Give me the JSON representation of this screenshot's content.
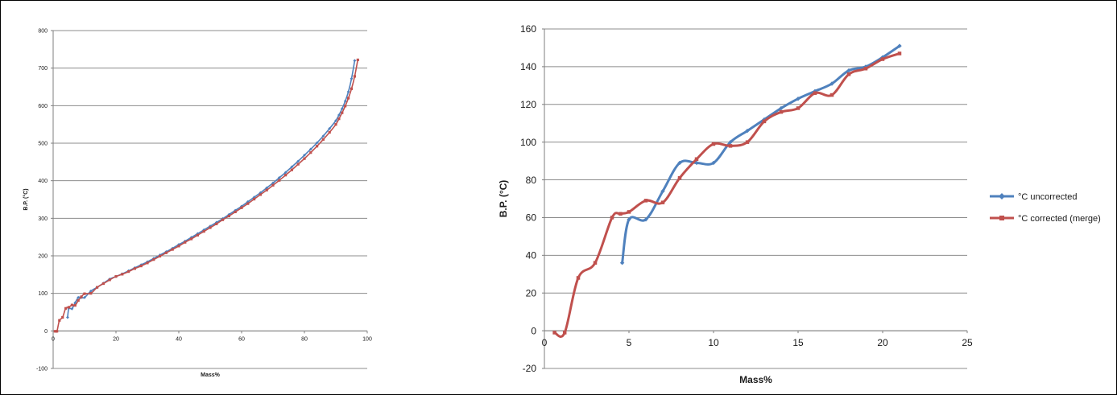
{
  "chart_data": [
    {
      "type": "line",
      "xlabel": "Mass%",
      "ylabel": "B.P. (°C)",
      "xlim": [
        0,
        100
      ],
      "ylim": [
        -100,
        800
      ],
      "xticks": [
        0,
        20,
        40,
        60,
        80,
        100
      ],
      "yticks": [
        -100,
        0,
        100,
        200,
        300,
        400,
        500,
        600,
        700,
        800
      ],
      "grid": true,
      "legend": "none",
      "series": [
        {
          "color": "#4f81bd",
          "marker": "diamond",
          "x": [
            4.6,
            5,
            6,
            7,
            8,
            9,
            10,
            12,
            14,
            16,
            18,
            20,
            22,
            24,
            26,
            28,
            30,
            32,
            34,
            36,
            38,
            40,
            42,
            44,
            46,
            48,
            50,
            52,
            54,
            56,
            58,
            60,
            62,
            64,
            66,
            68,
            70,
            72,
            74,
            76,
            78,
            80,
            82,
            84,
            86,
            88,
            90,
            91,
            92,
            93,
            94,
            95,
            96
          ],
          "y": [
            36,
            60,
            59,
            75,
            89,
            89,
            89,
            106,
            116,
            127,
            138,
            145,
            152,
            160,
            168,
            176,
            184,
            193,
            202,
            211,
            220,
            230,
            239,
            249,
            259,
            269,
            279,
            289,
            299,
            310,
            321,
            332,
            344,
            356,
            368,
            381,
            394,
            408,
            422,
            437,
            452,
            468,
            484,
            501,
            519,
            539,
            560,
            575,
            592,
            612,
            637,
            672,
            720
          ]
        },
        {
          "color": "#c0504d",
          "marker": "square",
          "x": [
            0.6,
            1.2,
            2,
            3,
            4,
            5,
            6,
            7,
            8,
            9,
            10,
            12,
            14,
            16,
            18,
            20,
            22,
            24,
            26,
            28,
            30,
            32,
            34,
            36,
            38,
            40,
            42,
            44,
            46,
            48,
            50,
            52,
            54,
            56,
            58,
            60,
            62,
            64,
            66,
            68,
            70,
            72,
            74,
            76,
            78,
            80,
            82,
            84,
            86,
            88,
            90,
            91,
            92,
            93,
            94,
            95,
            96,
            97
          ],
          "y": [
            -1,
            -1,
            28,
            36,
            60,
            63,
            69,
            68,
            81,
            91,
            99,
            100,
            116,
            126,
            136,
            145,
            151,
            158,
            166,
            173,
            181,
            190,
            199,
            208,
            217,
            226,
            236,
            245,
            255,
            265,
            275,
            285,
            296,
            306,
            317,
            328,
            339,
            351,
            363,
            375,
            388,
            401,
            415,
            429,
            444,
            459,
            475,
            492,
            510,
            529,
            550,
            565,
            581,
            599,
            620,
            645,
            678,
            722
          ]
        }
      ]
    },
    {
      "type": "line",
      "xlabel": "Mass%",
      "ylabel": "B.P. (°C)",
      "xlim": [
        0,
        25
      ],
      "ylim": [
        -20,
        160
      ],
      "xticks": [
        0,
        5,
        10,
        15,
        20,
        25
      ],
      "yticks": [
        -20,
        0,
        20,
        40,
        60,
        80,
        100,
        120,
        140,
        160
      ],
      "grid": true,
      "legend": "right",
      "series": [
        {
          "name": "°C uncorrected",
          "color": "#4f81bd",
          "marker": "diamond",
          "x": [
            4.6,
            5,
            6,
            7,
            8,
            9,
            10,
            11,
            12,
            13,
            14,
            15,
            16,
            17,
            18,
            19,
            20,
            21
          ],
          "y": [
            36,
            59,
            59,
            74,
            89,
            89,
            89,
            100,
            106,
            112,
            118,
            123,
            127,
            131,
            138,
            140,
            145,
            151
          ]
        },
        {
          "name": "°C corrected (merge)",
          "color": "#c0504d",
          "marker": "square",
          "x": [
            0.6,
            1.2,
            2,
            3,
            4,
            4.5,
            5,
            6,
            7,
            8,
            9,
            10,
            11,
            12,
            13,
            14,
            15,
            16,
            17,
            18,
            19,
            20,
            21
          ],
          "y": [
            -1,
            -1,
            28,
            36,
            60,
            62,
            63,
            69,
            68,
            81,
            91,
            99,
            98,
            100,
            111,
            116,
            118,
            126,
            125,
            136,
            139,
            144,
            147
          ]
        }
      ]
    }
  ]
}
